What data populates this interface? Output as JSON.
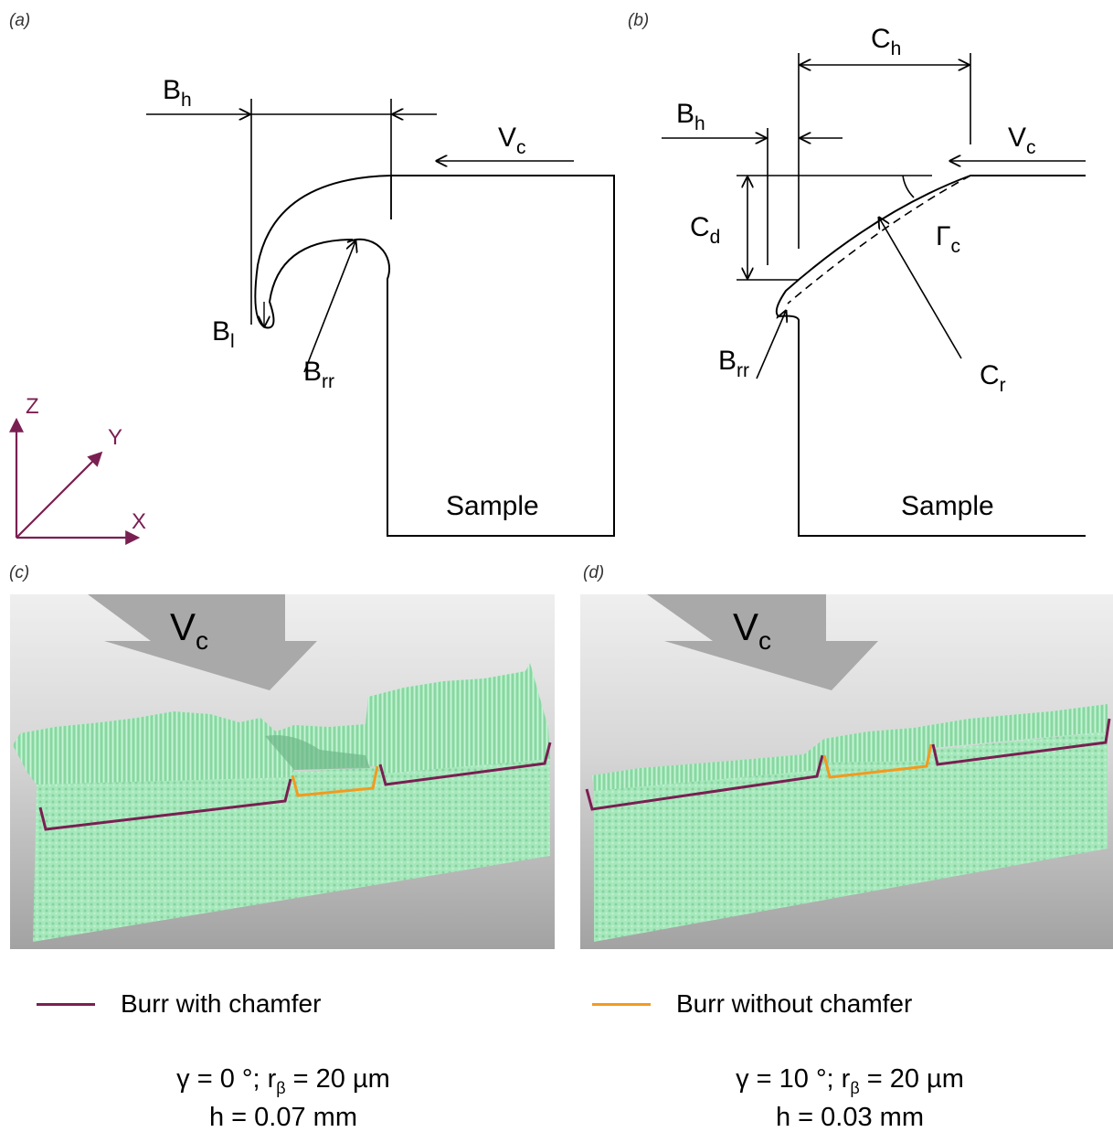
{
  "panels": {
    "a": "(a)",
    "b": "(b)",
    "c": "(c)",
    "d": "(d)"
  },
  "labels": {
    "B": "B",
    "B_sub_h": "h",
    "B_sub_l": "l",
    "B_sub_rr": "rr",
    "V": "V",
    "V_sub_c": "c",
    "C": "C",
    "C_sub_h": "h",
    "C_sub_d": "d",
    "C_sub_r": "r",
    "Gamma": "Γ",
    "Gamma_sub": "c",
    "sample": "Sample"
  },
  "axes": {
    "x": "X",
    "y": "Y",
    "z": "Z"
  },
  "colors": {
    "axis": "#7a1f52",
    "burr_with": "#7a1f52",
    "burr_without": "#f39a1e",
    "surface": "#9ee6b6",
    "surface_dark": "#78c996",
    "bg_top": "#ebebeb",
    "bg_bottom": "#a8a8a8",
    "arrow_gray": "#adadad"
  },
  "legend": {
    "with_chamfer": "Burr with chamfer",
    "without_chamfer": "Burr without chamfer"
  },
  "captions": {
    "left": {
      "gamma": "γ = 0 °; r",
      "beta": "β",
      "r_val": " = 20 µm",
      "h": "h = 0.07 mm"
    },
    "right": {
      "gamma": "γ = 10 °; r",
      "beta": "β",
      "r_val": " = 20 µm",
      "h": "h = 0.03 mm"
    }
  },
  "icons": {
    "arrow": "vc-arrow-icon",
    "axis": "axis-arrow-icon"
  }
}
